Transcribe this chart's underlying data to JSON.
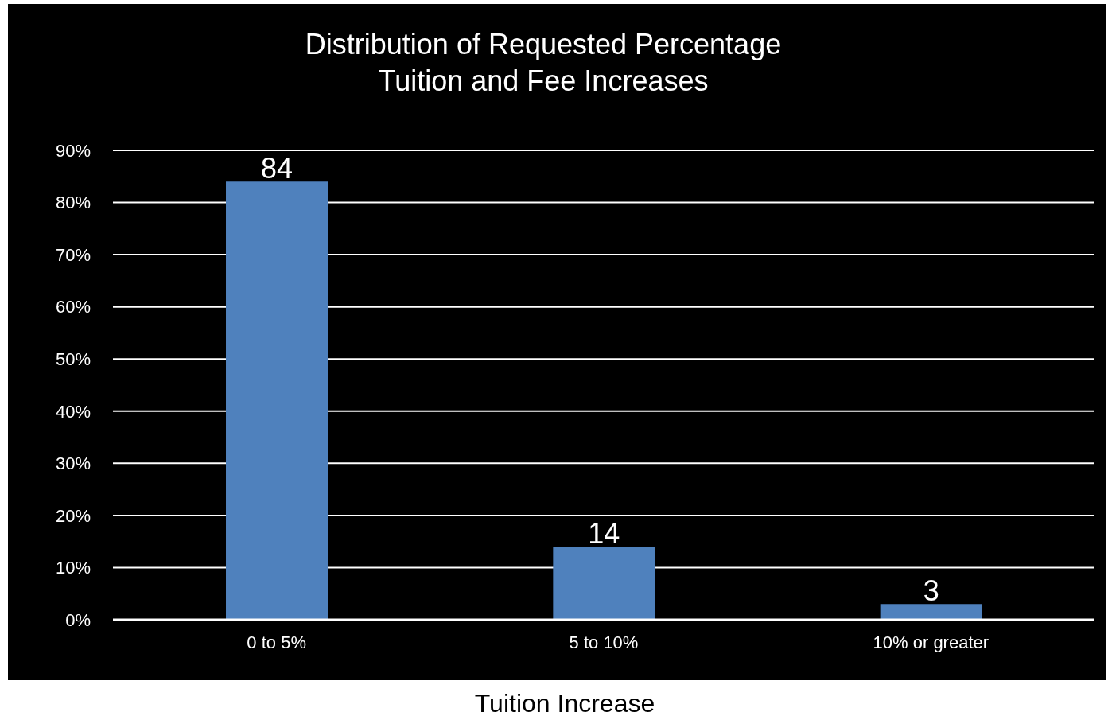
{
  "chart_data": {
    "type": "bar",
    "title": "Distribution of Requested Percentage\nTuition and Fee Increases",
    "xlabel": "Tuition Increase",
    "categories": [
      "0 to 5%",
      "5 to 10%",
      "10% or greater"
    ],
    "values": [
      84,
      14,
      3
    ],
    "color": "#4f81bd",
    "ylim": [
      0,
      90
    ],
    "yticks": [
      {
        "value": 0,
        "label": "0%"
      },
      {
        "value": 10,
        "label": "10%"
      },
      {
        "value": 20,
        "label": "20%"
      },
      {
        "value": 30,
        "label": "30%"
      },
      {
        "value": 40,
        "label": "40%"
      },
      {
        "value": 50,
        "label": "50%"
      },
      {
        "value": 60,
        "label": "60%"
      },
      {
        "value": 70,
        "label": "70%"
      },
      {
        "value": 80,
        "label": "80%"
      },
      {
        "value": 90,
        "label": "90%"
      }
    ],
    "grid": "y",
    "data_labels": true
  }
}
